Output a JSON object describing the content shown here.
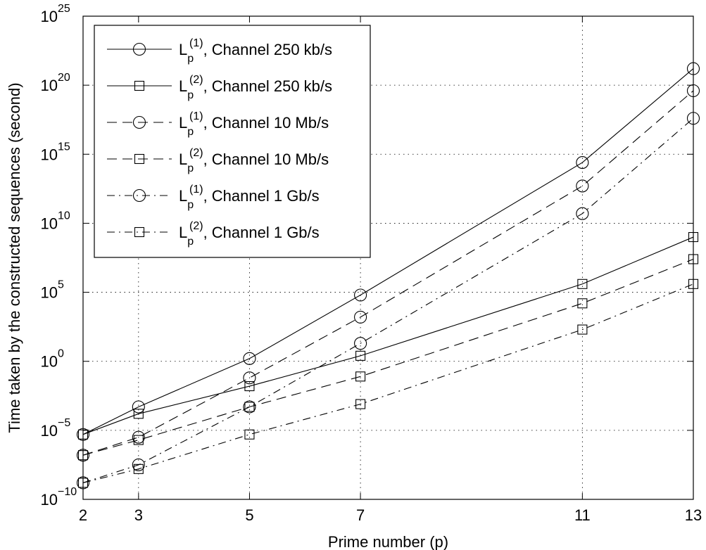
{
  "chart_data": {
    "type": "line",
    "title": "",
    "xlabel": "Prime number (p)",
    "ylabel": "Time taken by the constructed sequences (second)",
    "x": [
      2,
      3,
      5,
      7,
      11,
      13
    ],
    "x_ticks": [
      "2",
      "3",
      "5",
      "7",
      "11",
      "13"
    ],
    "xlim": [
      2,
      13
    ],
    "y_scale": "log",
    "ylim": [
      1e-10,
      1e+25
    ],
    "y_tick_bases": [
      "10",
      "10",
      "10",
      "10",
      "10",
      "10",
      "10",
      "10"
    ],
    "y_tick_exponents": [
      "−10",
      "−5",
      "0",
      "5",
      "10",
      "15",
      "20",
      "25"
    ],
    "y_tick_exp_values": [
      -10,
      -5,
      0,
      5,
      10,
      15,
      20,
      25
    ],
    "grid": true,
    "legend_position": "top-left",
    "series": [
      {
        "legend_main": "L",
        "legend_sub": "p",
        "legend_sup": "(1)",
        "legend_rest": ", Channel 250 kb/s",
        "marker": "circle",
        "line": "solid",
        "log10_values": [
          -5.3,
          -3.3,
          0.2,
          4.8,
          14.4,
          21.2
        ]
      },
      {
        "legend_main": "L",
        "legend_sub": "p",
        "legend_sup": "(2)",
        "legend_rest": ", Channel 250 kb/s",
        "marker": "square",
        "line": "solid",
        "log10_values": [
          -5.3,
          -3.8,
          -1.8,
          0.4,
          5.6,
          9.0
        ]
      },
      {
        "legend_main": "L",
        "legend_sub": "p",
        "legend_sup": "(1)",
        "legend_rest": ", Channel 10 Mb/s",
        "marker": "circle",
        "line": "dashed",
        "log10_values": [
          -6.8,
          -5.5,
          -1.2,
          3.2,
          12.7,
          19.6
        ]
      },
      {
        "legend_main": "L",
        "legend_sub": "p",
        "legend_sup": "(2)",
        "legend_rest": ", Channel 10 Mb/s",
        "marker": "square",
        "line": "dashed",
        "log10_values": [
          -6.8,
          -5.7,
          -3.3,
          -1.1,
          4.2,
          7.4
        ]
      },
      {
        "legend_main": "L",
        "legend_sub": "p",
        "legend_sup": "(1)",
        "legend_rest": ", Channel 1 Gb/s",
        "marker": "circle",
        "line": "dashdot",
        "log10_values": [
          -8.8,
          -7.5,
          -3.3,
          1.3,
          10.7,
          17.6
        ]
      },
      {
        "legend_main": "L",
        "legend_sub": "p",
        "legend_sup": "(2)",
        "legend_rest": ", Channel 1 Gb/s",
        "marker": "square",
        "line": "dashdot",
        "log10_values": [
          -8.8,
          -7.8,
          -5.3,
          -3.1,
          2.3,
          5.6
        ]
      }
    ]
  }
}
